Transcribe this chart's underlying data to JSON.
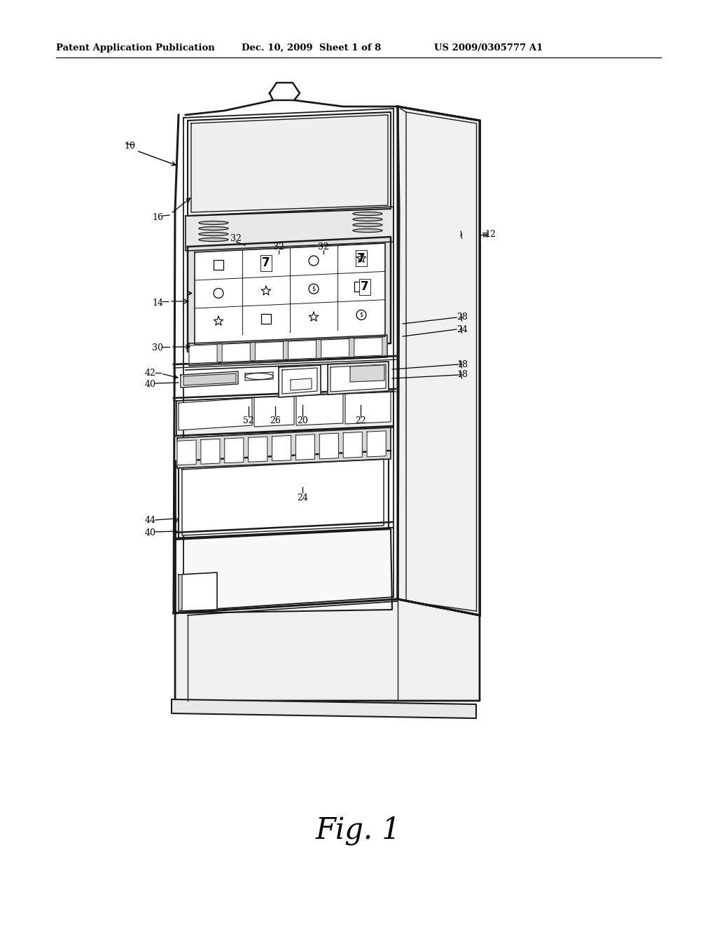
{
  "bg_color": "#ffffff",
  "line_color": "#1a1a1a",
  "header_left": "Patent Application Publication",
  "header_mid": "Dec. 10, 2009  Sheet 1 of 8",
  "header_right": "US 2009/0305777 A1",
  "figure_label": "Fig. 1"
}
